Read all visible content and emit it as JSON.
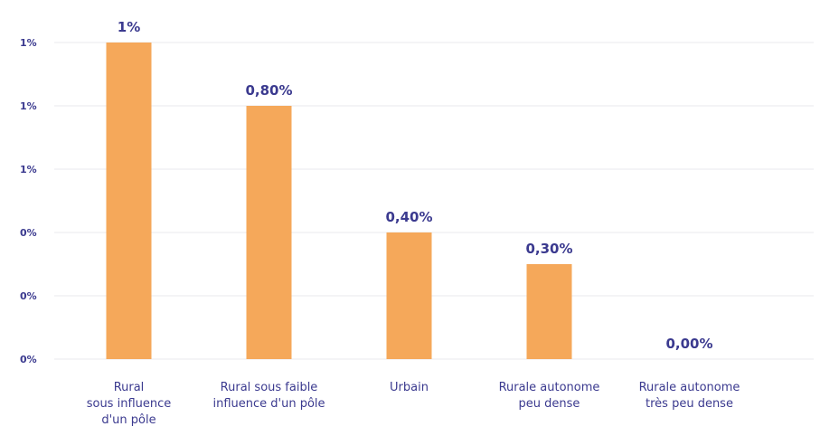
{
  "chart_data": {
    "type": "bar",
    "title": "",
    "xlabel": "",
    "ylabel": "",
    "categories": [
      "Rural sous influence d'un pôle",
      "Rural sous faible influence d'un pôle",
      "Urbain",
      "Rurale autonome peu dense",
      "Rurale autonome très peu dense"
    ],
    "category_lines": [
      [
        "Rural",
        "sous influence",
        "d'un pôle"
      ],
      [
        "Rural sous faible",
        "influence d'un pôle"
      ],
      [
        "Urbain"
      ],
      [
        "Rurale autonome",
        "peu dense"
      ],
      [
        "Rurale autonome",
        "très peu dense"
      ]
    ],
    "values": [
      1.0,
      0.8,
      0.4,
      0.3,
      0.0
    ],
    "data_labels": [
      "1%",
      "0,80%",
      "0,40%",
      "0,30%",
      "0,00%"
    ],
    "y_ticks": [
      0,
      0.2,
      0.4,
      0.6,
      0.8,
      1.0
    ],
    "y_tick_labels": [
      "0%",
      "0%",
      "0%",
      "1%",
      "1%",
      "1%"
    ],
    "ylim": [
      0,
      1.0
    ],
    "grid": true,
    "legend": "none",
    "colors": {
      "bar": "#f5a85a",
      "text": "#3b3a8f",
      "grid": "#e9e9ee"
    }
  }
}
